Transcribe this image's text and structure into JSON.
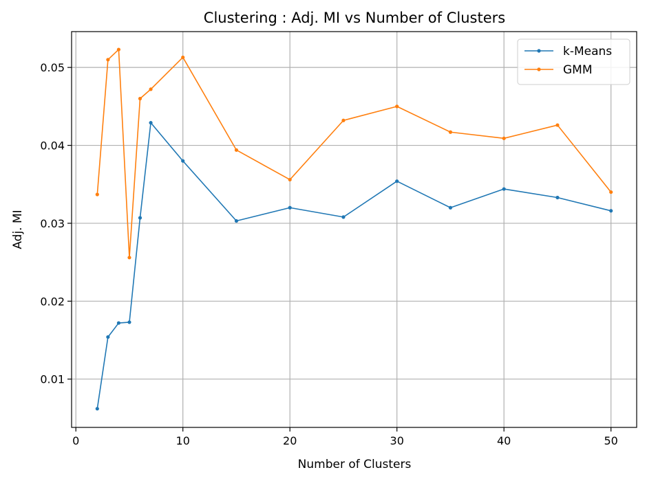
{
  "chart_data": {
    "type": "line",
    "title": "Clustering : Adj. MI vs Number of Clusters",
    "xlabel": "Number of Clusters",
    "ylabel": "Adj. MI",
    "xlim": [
      -0.4,
      52.4
    ],
    "ylim": [
      0.0038,
      0.0546
    ],
    "xticks": [
      0,
      10,
      20,
      30,
      40,
      50
    ],
    "yticks": [
      0.01,
      0.02,
      0.03,
      0.04,
      0.05
    ],
    "xtick_labels": [
      "0",
      "10",
      "20",
      "30",
      "40",
      "50"
    ],
    "ytick_labels": [
      "0.01",
      "0.02",
      "0.03",
      "0.04",
      "0.05"
    ],
    "grid": true,
    "legend_position": "top-right",
    "x": [
      2,
      3,
      4,
      5,
      6,
      7,
      10,
      15,
      20,
      25,
      30,
      35,
      40,
      45,
      50
    ],
    "series": [
      {
        "name": "k-Means",
        "color": "#1f77b4",
        "values": [
          0.0062,
          0.0154,
          0.0172,
          0.0173,
          0.0307,
          0.0429,
          0.038,
          0.0303,
          0.032,
          0.0308,
          0.0354,
          0.032,
          0.0344,
          0.0333,
          0.0316
        ]
      },
      {
        "name": "GMM",
        "color": "#ff7f0e",
        "values": [
          0.0337,
          0.051,
          0.0523,
          0.0256,
          0.046,
          0.0472,
          0.0513,
          0.0394,
          0.0356,
          0.0432,
          0.045,
          0.0417,
          0.0409,
          0.0426,
          0.034
        ]
      }
    ]
  }
}
